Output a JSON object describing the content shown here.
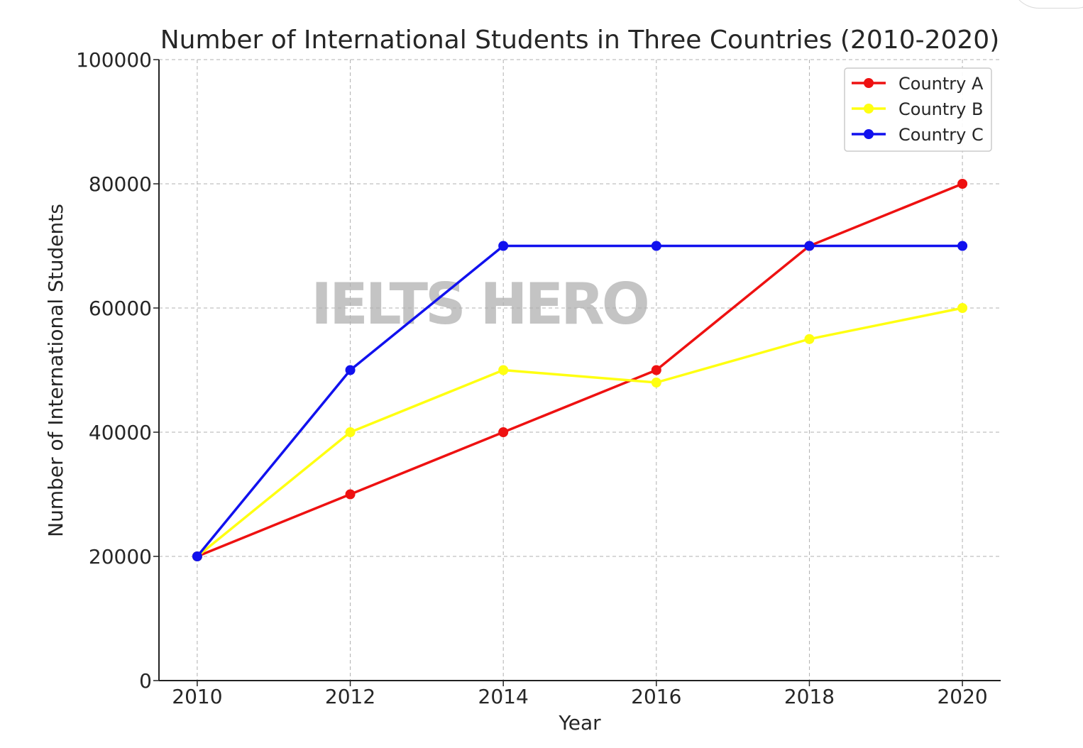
{
  "chart_data": {
    "type": "line",
    "title": "Number of International Students in Three Countries (2010-2020)",
    "xlabel": "Year",
    "ylabel": "Number of International Students",
    "x": [
      2010,
      2012,
      2014,
      2016,
      2018,
      2020
    ],
    "x_ticks": [
      "2010",
      "2012",
      "2014",
      "2016",
      "2018",
      "2020"
    ],
    "xlim": [
      2009.5,
      2020.5
    ],
    "ylim": [
      0,
      100000
    ],
    "y_ticks": [
      "0",
      "20000",
      "40000",
      "60000",
      "80000",
      "100000"
    ],
    "y_tick_values": [
      0,
      20000,
      40000,
      60000,
      80000,
      100000
    ],
    "grid": true,
    "grid_style": "dashed",
    "legend_position": "top-right",
    "series": [
      {
        "name": "Country A",
        "color": "#ee1111",
        "values": [
          20000,
          30000,
          40000,
          50000,
          70000,
          80000
        ]
      },
      {
        "name": "Country B",
        "color": "#ffff11",
        "values": [
          20000,
          40000,
          50000,
          48000,
          55000,
          60000
        ]
      },
      {
        "name": "Country C",
        "color": "#1111ee",
        "values": [
          20000,
          50000,
          70000,
          70000,
          70000,
          70000
        ]
      }
    ],
    "watermark": "IELTS HERO"
  }
}
